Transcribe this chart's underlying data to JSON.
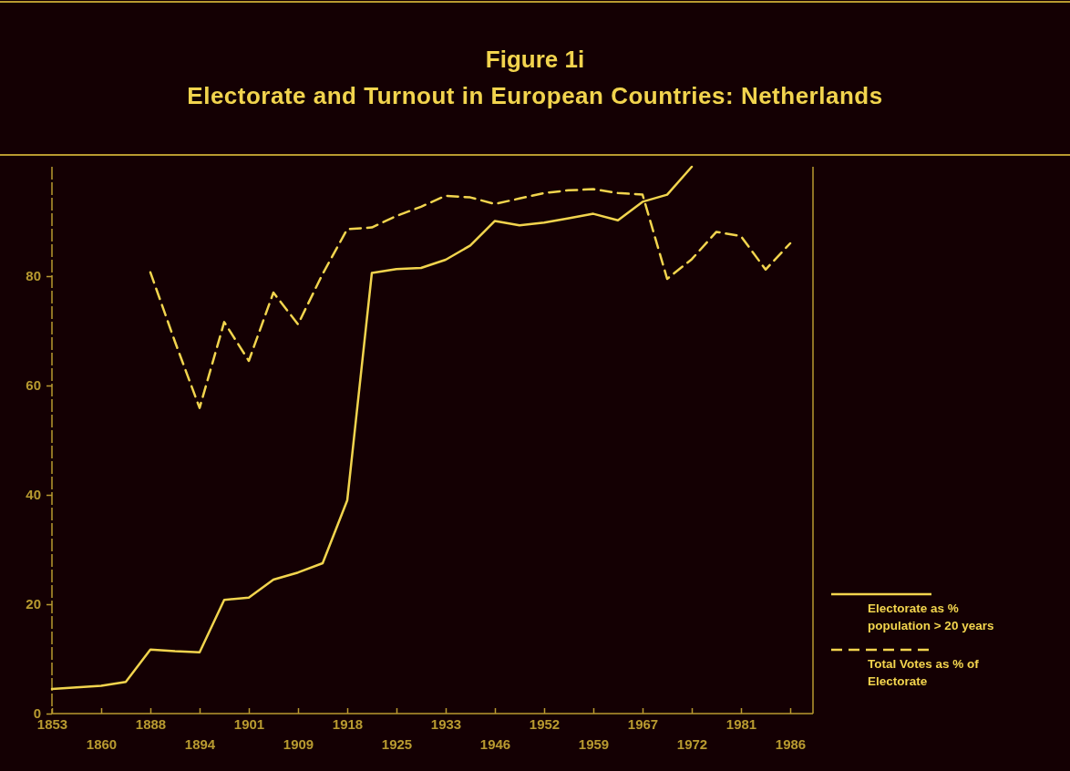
{
  "chart_data": {
    "type": "line",
    "title": "Figure 1i",
    "subtitle": "Electorate and Turnout in European Countries: Netherlands",
    "categories": [
      "1853",
      null,
      "1860",
      null,
      "1888",
      null,
      "1894",
      null,
      "1901",
      null,
      "1909",
      null,
      "1918",
      null,
      "1925",
      null,
      "1933",
      null,
      "1946",
      null,
      "1952",
      null,
      "1959",
      null,
      "1967",
      null,
      "1972",
      null,
      "1981",
      null,
      "1986"
    ],
    "series": [
      {
        "name": "Electorate as % population > 20 years",
        "color": "#f2d44e",
        "line_style": "solid",
        "values": [
          4.5,
          4.8,
          5.1,
          5.8,
          11.7,
          11.4,
          11.2,
          20.8,
          21.2,
          24.5,
          25.8,
          27.5,
          39,
          80.6,
          81.3,
          81.5,
          83,
          85.6,
          90.1,
          89.3,
          89.8,
          90.6,
          91.4,
          90.2,
          93.6,
          94.9,
          100,
          null,
          null,
          null,
          null
        ]
      },
      {
        "name": "Total Votes as % of Electorate",
        "color": "#f2d44e",
        "line_style": "dashed",
        "values": [
          null,
          null,
          null,
          null,
          80.7,
          68,
          55.9,
          71.6,
          64.5,
          77,
          71.2,
          80.4,
          88.6,
          88.9,
          91,
          92.7,
          94.7,
          94.4,
          93.2,
          94.2,
          95.2,
          95.7,
          95.9,
          95.2,
          94.9,
          79.5,
          83.1,
          88.1,
          87.3,
          81.2,
          86
        ]
      }
    ],
    "ylim": [
      0,
      100
    ],
    "yticks": [
      0,
      20,
      40,
      60,
      80
    ],
    "grid": false,
    "legend": "right",
    "marker": "none"
  }
}
